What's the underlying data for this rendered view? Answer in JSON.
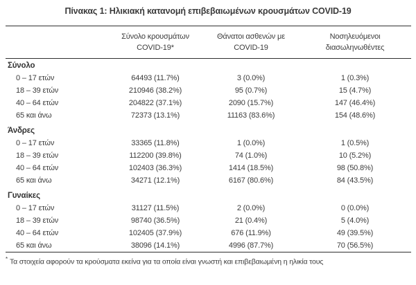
{
  "page": {
    "background": "#ffffff",
    "text_color": "#3b3b3b",
    "rule_color": "#2e2e2e"
  },
  "title": "Πίνακας 1: Ηλικιακή κατανομή επιβεβαιωμένων κρουσμάτων COVID-19",
  "table": {
    "columns": [
      {
        "line1": "",
        "line2": ""
      },
      {
        "line1": "Σύνολο κρουσμάτων",
        "line2": "COVID-19*"
      },
      {
        "line1": "Θάνατοι ασθενών με",
        "line2": "COVID-19"
      },
      {
        "line1": "Νοσηλευόμενοι",
        "line2": "διασωληνωθέντες"
      }
    ],
    "sections": [
      {
        "label": "Σύνολο",
        "rows": [
          {
            "age": "0 – 17 ετών",
            "cases": "64493 (11.7%)",
            "deaths": "3 (0.0%)",
            "intubated": "1 (0.3%)"
          },
          {
            "age": "18 – 39 ετών",
            "cases": "210946 (38.2%)",
            "deaths": "95 (0.7%)",
            "intubated": "15 (4.7%)"
          },
          {
            "age": "40 – 64 ετών",
            "cases": "204822 (37.1%)",
            "deaths": "2090 (15.7%)",
            "intubated": "147 (46.4%)"
          },
          {
            "age": "65 και άνω",
            "cases": "72373 (13.1%)",
            "deaths": "11163 (83.6%)",
            "intubated": "154 (48.6%)"
          }
        ]
      },
      {
        "label": "Άνδρες",
        "rows": [
          {
            "age": "0 – 17 ετών",
            "cases": "33365 (11.8%)",
            "deaths": "1 (0.0%)",
            "intubated": "1 (0.5%)"
          },
          {
            "age": "18 – 39 ετών",
            "cases": "112200 (39.8%)",
            "deaths": "74 (1.0%)",
            "intubated": "10 (5.2%)"
          },
          {
            "age": "40 – 64 ετών",
            "cases": "102403 (36.3%)",
            "deaths": "1414 (18.5%)",
            "intubated": "98 (50.8%)"
          },
          {
            "age": "65 και άνω",
            "cases": "34271 (12.1%)",
            "deaths": "6167 (80.6%)",
            "intubated": "84 (43.5%)"
          }
        ]
      },
      {
        "label": "Γυναίκες",
        "rows": [
          {
            "age": "0 – 17 ετών",
            "cases": "31127 (11.5%)",
            "deaths": "2 (0.0%)",
            "intubated": "0 (0.0%)"
          },
          {
            "age": "18 – 39 ετών",
            "cases": "98740 (36.5%)",
            "deaths": "21 (0.4%)",
            "intubated": "5 (4.0%)"
          },
          {
            "age": "40 – 64 ετών",
            "cases": "102405 (37.9%)",
            "deaths": "676 (11.9%)",
            "intubated": "49 (39.5%)"
          },
          {
            "age": "65 και άνω",
            "cases": "38096 (14.1%)",
            "deaths": "4996 (87.7%)",
            "intubated": "70 (56.5%)"
          }
        ]
      }
    ]
  },
  "footnote": {
    "marker": "*",
    "text": "Τα στοιχεία αφορούν τα κρούσματα εκείνα για τα οποία είναι γνωστή και επιβεβαιωμένη η ηλικία τους"
  }
}
